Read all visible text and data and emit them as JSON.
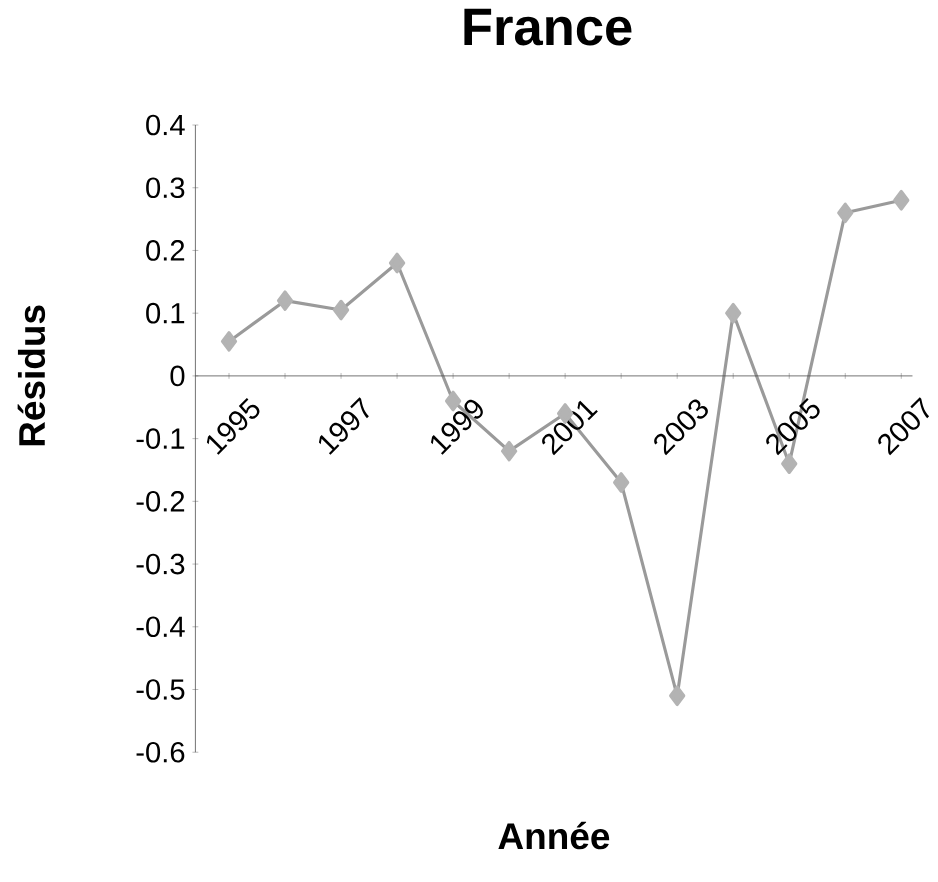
{
  "chart_data": {
    "type": "line",
    "title": "France",
    "xlabel": "Année",
    "ylabel": "Résidus",
    "categories": [
      "1995",
      null,
      "1997",
      null,
      "1999",
      null,
      "2001",
      null,
      "2003",
      null,
      "2005",
      null,
      "2007"
    ],
    "values": [
      0.055,
      0.12,
      0.105,
      0.18,
      -0.04,
      -0.12,
      -0.06,
      -0.17,
      -0.51,
      0.1,
      -0.14,
      0.26,
      0.28
    ],
    "color": "#9a9a9a",
    "marker": "diamond",
    "ylim": [
      -0.6,
      0.4
    ],
    "yticks": [
      -0.6,
      -0.5,
      -0.4,
      -0.3,
      -0.2,
      -0.1,
      0,
      0.1,
      0.2,
      0.3,
      0.4
    ]
  }
}
